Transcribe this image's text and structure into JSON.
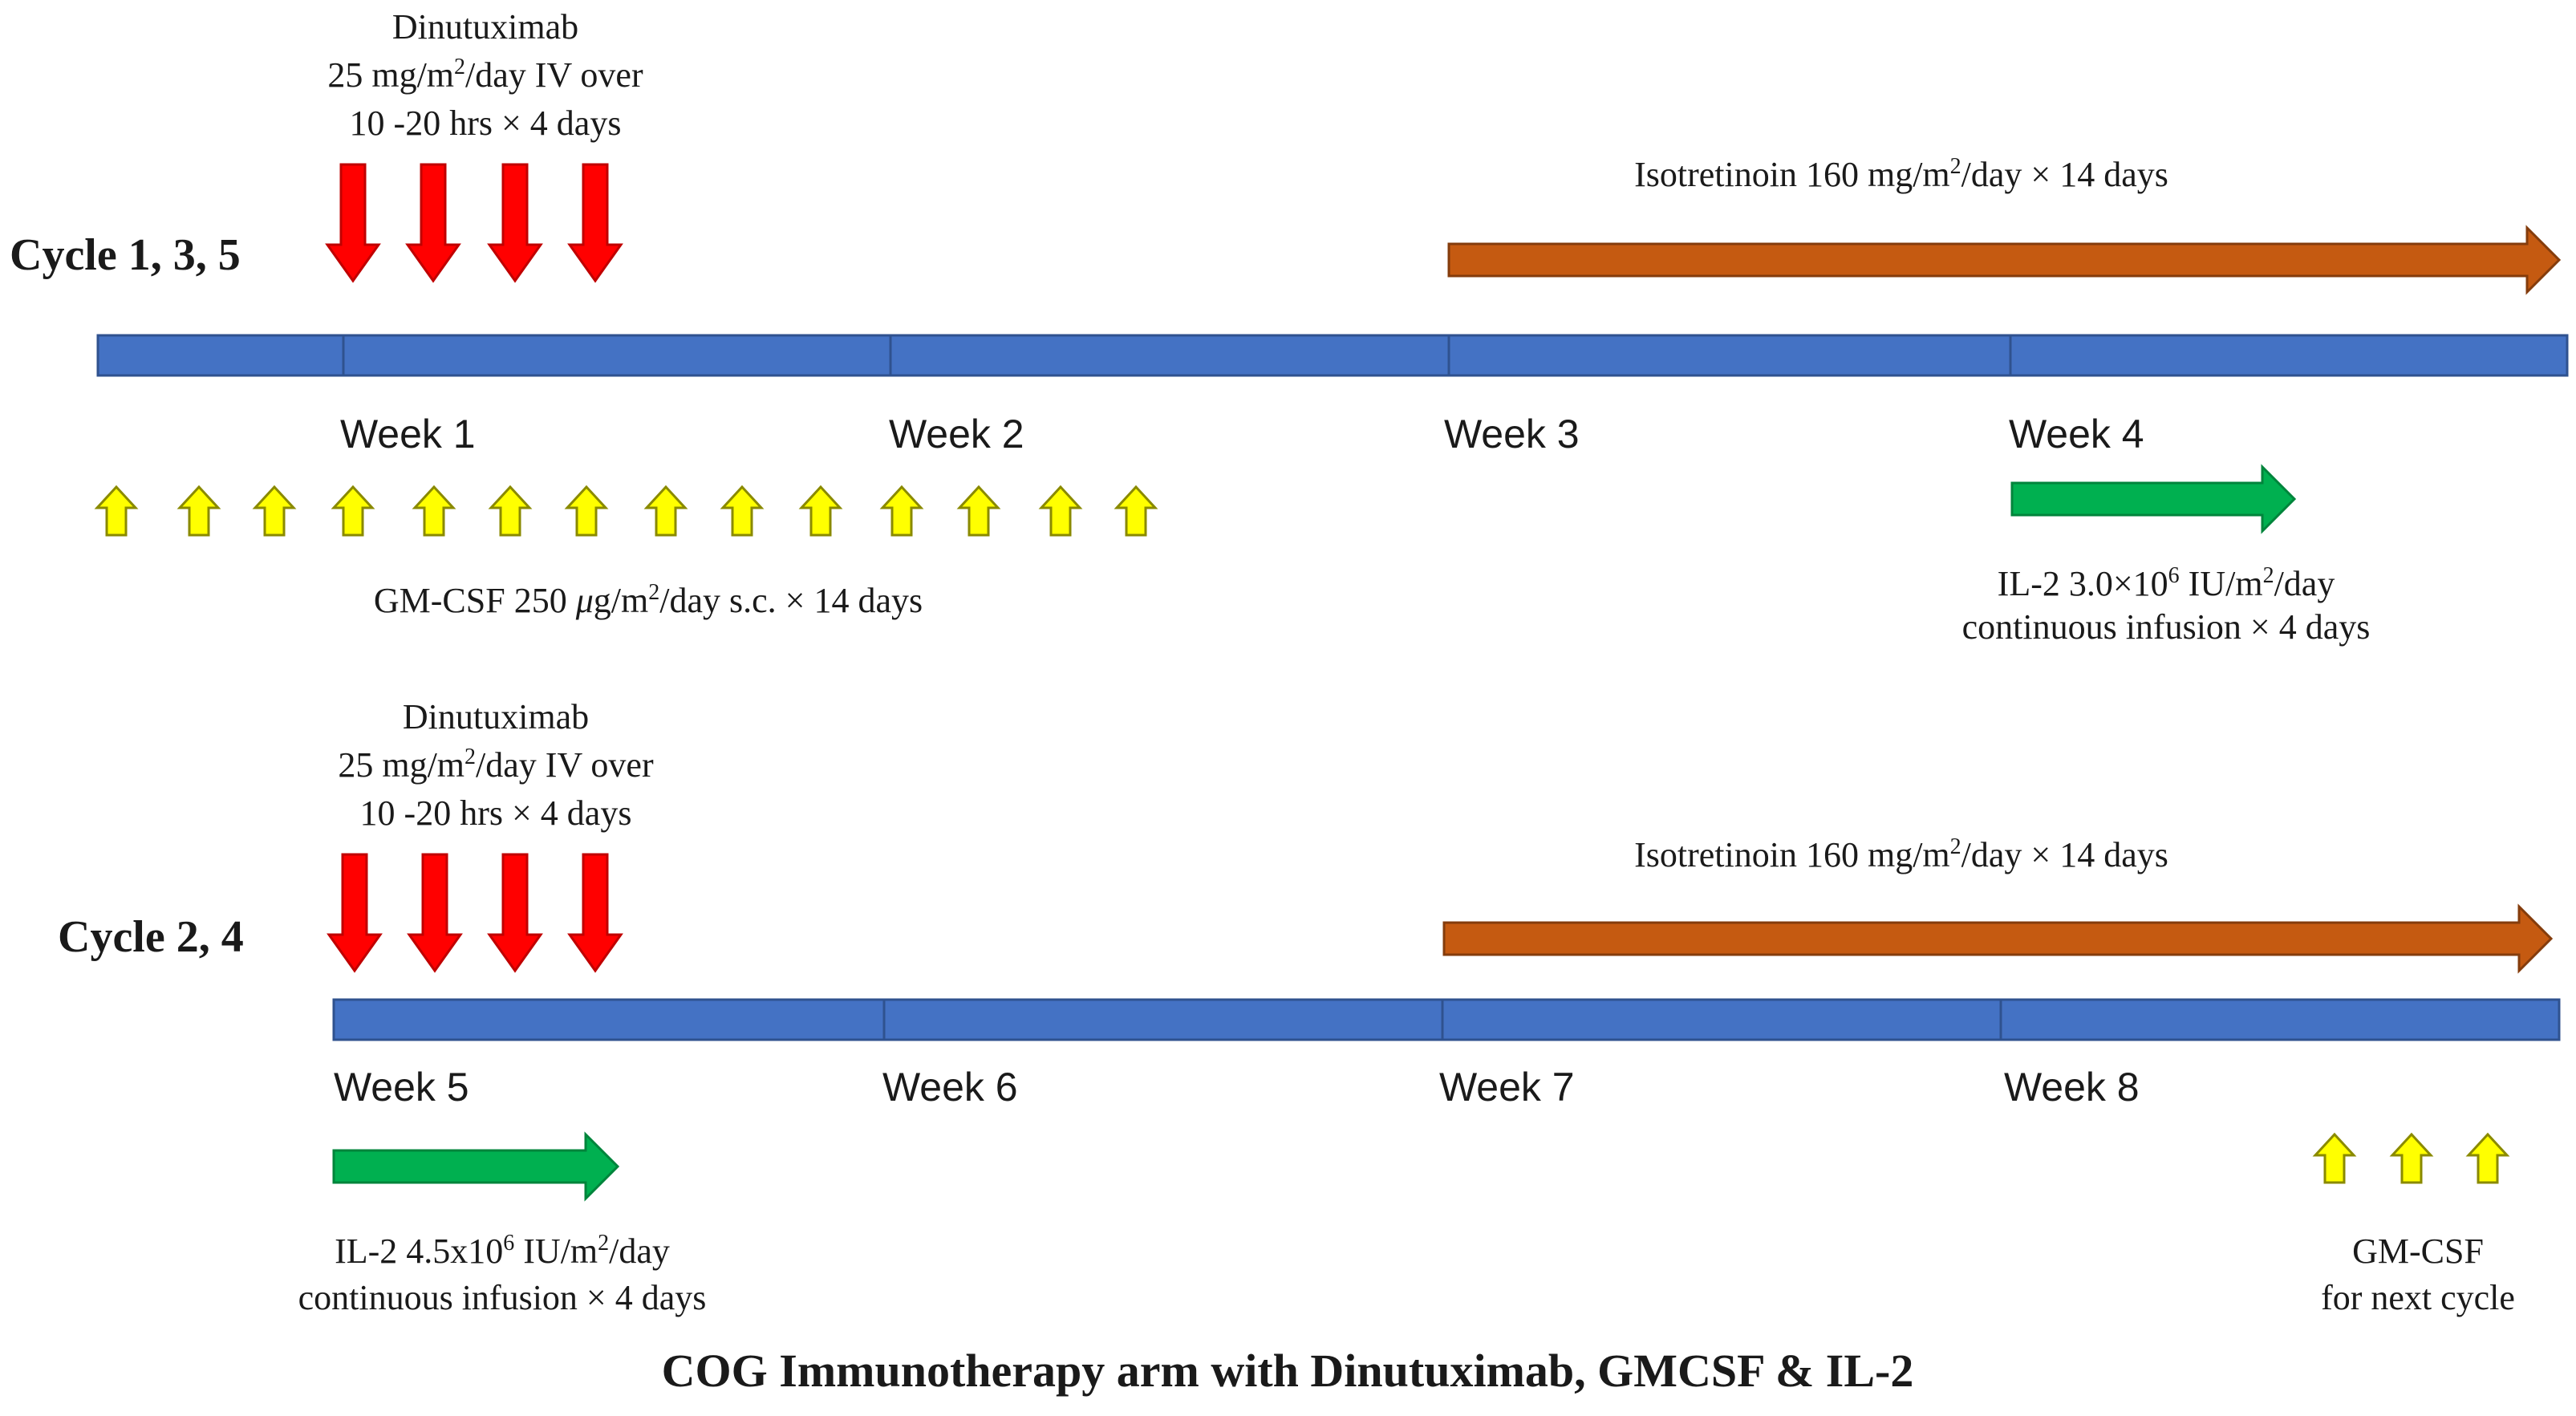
{
  "title": "COG Immunotherapy arm with Dinutuximab, GMCSF & IL-2",
  "colors": {
    "timeline": "#4472c4",
    "dinutuximab": "#ff0000",
    "isotretinoin": "#c55a11",
    "il2": "#00b050",
    "gmcsf": "#ffff00"
  },
  "cycle_a": {
    "label": "Cycle 1, 3, 5",
    "weeks": [
      "Week 1",
      "Week 2",
      "Week 3",
      "Week 4"
    ],
    "dinutuximab": {
      "name": "Dinutuximab",
      "dose_a": "25 mg/m",
      "dose_sup": "2",
      "dose_b": "/day IV  over",
      "duration": "10 -20 hrs × 4 days"
    },
    "isotretinoin": {
      "a": "Isotretinoin 160 mg/m",
      "sup": "2",
      "b": "/day × 14 days"
    },
    "gmcsf": {
      "a": "GM-CSF 250 ",
      "mu": "μ",
      "b": "g/m",
      "sup": "2",
      "c": "/day s.c. × 14 days",
      "arrow_count": 14
    },
    "il2": {
      "a": "IL-2   3.0×10",
      "sup1": "6",
      "b": " IU/m",
      "sup2": "2",
      "c": "/day",
      "line2": "continuous infusion × 4 days"
    }
  },
  "cycle_b": {
    "label": "Cycle 2, 4",
    "weeks": [
      "Week 5",
      "Week 6",
      "Week 7",
      "Week 8"
    ],
    "dinutuximab": {
      "name": "Dinutuximab",
      "dose_a": "25 mg/m",
      "dose_sup": "2",
      "dose_b": "/day IV  over",
      "duration": "10 -20 hrs × 4 days"
    },
    "isotretinoin": {
      "a": "Isotretinoin 160 mg/m",
      "sup": "2",
      "b": "/day × 14 days"
    },
    "il2": {
      "a": "IL-2   4.5x10",
      "sup1": "6",
      "b": " IU/m",
      "sup2": "2",
      "c": "/day",
      "line2": "continuous infusion × 4 days"
    },
    "gmcsf_next": {
      "line1": "GM-CSF",
      "line2": "for next cycle",
      "arrow_count": 3
    }
  }
}
